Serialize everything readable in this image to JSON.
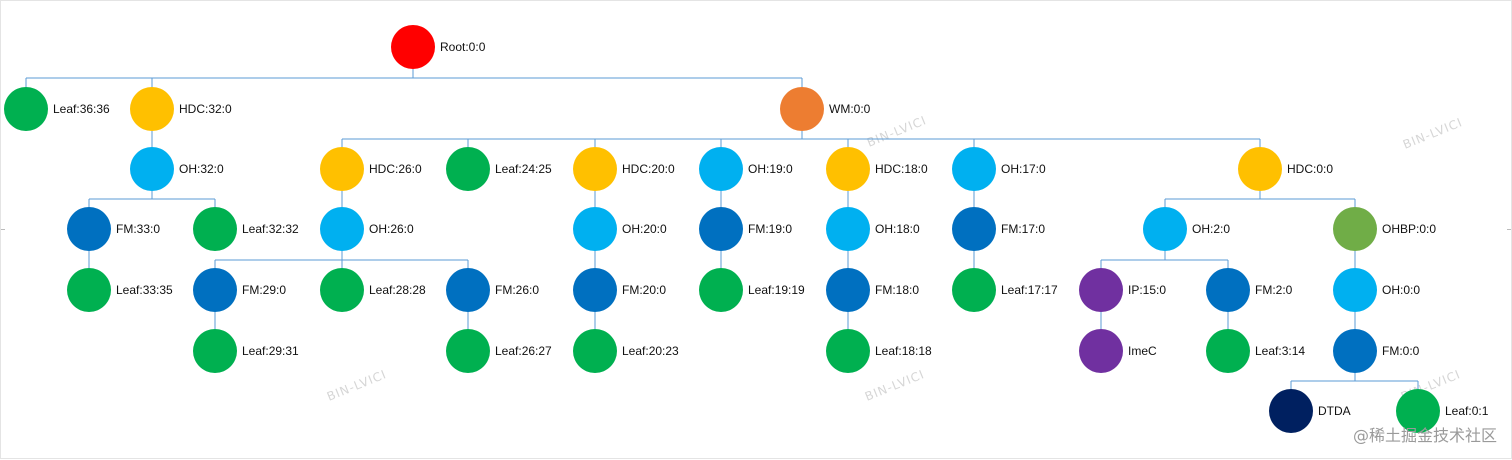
{
  "colors": {
    "red": "#FF0000",
    "orange": "#ED7D31",
    "yellow": "#FFC000",
    "green": "#00B050",
    "lightblue": "#00B0F0",
    "blue": "#0070C0",
    "purple": "#7030A0",
    "olive": "#70AD47",
    "navy": "#002060",
    "edge": "#5B9BD5"
  },
  "watermark_text": "BIN-LVICI",
  "credit": "@稀土掘金技术社区",
  "nodes": [
    {
      "id": "root",
      "label": "Root:0:0",
      "color": "red",
      "parent": null
    },
    {
      "id": "leaf-36",
      "label": "Leaf:36:36",
      "color": "green",
      "parent": "root"
    },
    {
      "id": "hdc-32",
      "label": "HDC:32:0",
      "color": "yellow",
      "parent": "root"
    },
    {
      "id": "wm",
      "label": "WM:0:0",
      "color": "orange",
      "parent": "root"
    },
    {
      "id": "oh-32",
      "label": "OH:32:0",
      "color": "lightblue",
      "parent": "hdc-32"
    },
    {
      "id": "fm-33",
      "label": "FM:33:0",
      "color": "blue",
      "parent": "oh-32"
    },
    {
      "id": "leaf-32",
      "label": "Leaf:32:32",
      "color": "green",
      "parent": "oh-32"
    },
    {
      "id": "leaf-33",
      "label": "Leaf:33:35",
      "color": "green",
      "parent": "fm-33"
    },
    {
      "id": "hdc-26",
      "label": "HDC:26:0",
      "color": "yellow",
      "parent": "wm"
    },
    {
      "id": "leaf-24",
      "label": "Leaf:24:25",
      "color": "green",
      "parent": "wm"
    },
    {
      "id": "hdc-20",
      "label": "HDC:20:0",
      "color": "yellow",
      "parent": "wm"
    },
    {
      "id": "oh-19",
      "label": "OH:19:0",
      "color": "lightblue",
      "parent": "wm"
    },
    {
      "id": "hdc-18",
      "label": "HDC:18:0",
      "color": "yellow",
      "parent": "wm"
    },
    {
      "id": "oh-17",
      "label": "OH:17:0",
      "color": "lightblue",
      "parent": "wm"
    },
    {
      "id": "hdc-0",
      "label": "HDC:0:0",
      "color": "yellow",
      "parent": "wm"
    },
    {
      "id": "oh-26",
      "label": "OH:26:0",
      "color": "lightblue",
      "parent": "hdc-26"
    },
    {
      "id": "fm-29",
      "label": "FM:29:0",
      "color": "blue",
      "parent": "oh-26"
    },
    {
      "id": "leaf-28",
      "label": "Leaf:28:28",
      "color": "green",
      "parent": "oh-26"
    },
    {
      "id": "fm-26",
      "label": "FM:26:0",
      "color": "blue",
      "parent": "oh-26"
    },
    {
      "id": "leaf-29",
      "label": "Leaf:29:31",
      "color": "green",
      "parent": "fm-29"
    },
    {
      "id": "leaf-26",
      "label": "Leaf:26:27",
      "color": "green",
      "parent": "fm-26"
    },
    {
      "id": "oh-20",
      "label": "OH:20:0",
      "color": "lightblue",
      "parent": "hdc-20"
    },
    {
      "id": "fm-20",
      "label": "FM:20:0",
      "color": "blue",
      "parent": "oh-20"
    },
    {
      "id": "leaf-20",
      "label": "Leaf:20:23",
      "color": "green",
      "parent": "fm-20"
    },
    {
      "id": "fm-19",
      "label": "FM:19:0",
      "color": "blue",
      "parent": "oh-19"
    },
    {
      "id": "leaf-19",
      "label": "Leaf:19:19",
      "color": "green",
      "parent": "fm-19"
    },
    {
      "id": "oh-18",
      "label": "OH:18:0",
      "color": "lightblue",
      "parent": "hdc-18"
    },
    {
      "id": "fm-18",
      "label": "FM:18:0",
      "color": "blue",
      "parent": "oh-18"
    },
    {
      "id": "leaf-18",
      "label": "Leaf:18:18",
      "color": "green",
      "parent": "fm-18"
    },
    {
      "id": "fm-17",
      "label": "FM:17:0",
      "color": "blue",
      "parent": "oh-17"
    },
    {
      "id": "leaf-17",
      "label": "Leaf:17:17",
      "color": "green",
      "parent": "fm-17"
    },
    {
      "id": "oh-2",
      "label": "OH:2:0",
      "color": "lightblue",
      "parent": "hdc-0"
    },
    {
      "id": "ohbp",
      "label": "OHBP:0:0",
      "color": "olive",
      "parent": "hdc-0"
    },
    {
      "id": "ip-15",
      "label": "IP:15:0",
      "color": "purple",
      "parent": "oh-2"
    },
    {
      "id": "fm-2",
      "label": "FM:2:0",
      "color": "blue",
      "parent": "oh-2"
    },
    {
      "id": "imec",
      "label": "ImeC",
      "color": "purple",
      "parent": "ip-15"
    },
    {
      "id": "leaf-3",
      "label": "Leaf:3:14",
      "color": "green",
      "parent": "fm-2"
    },
    {
      "id": "oh-0",
      "label": "OH:0:0",
      "color": "lightblue",
      "parent": "ohbp"
    },
    {
      "id": "fm-0",
      "label": "FM:0:0",
      "color": "blue",
      "parent": "oh-0"
    },
    {
      "id": "dtda",
      "label": "DTDA",
      "color": "navy",
      "parent": "fm-0"
    },
    {
      "id": "leaf-0",
      "label": "Leaf:0:1",
      "color": "green",
      "parent": "fm-0"
    }
  ]
}
